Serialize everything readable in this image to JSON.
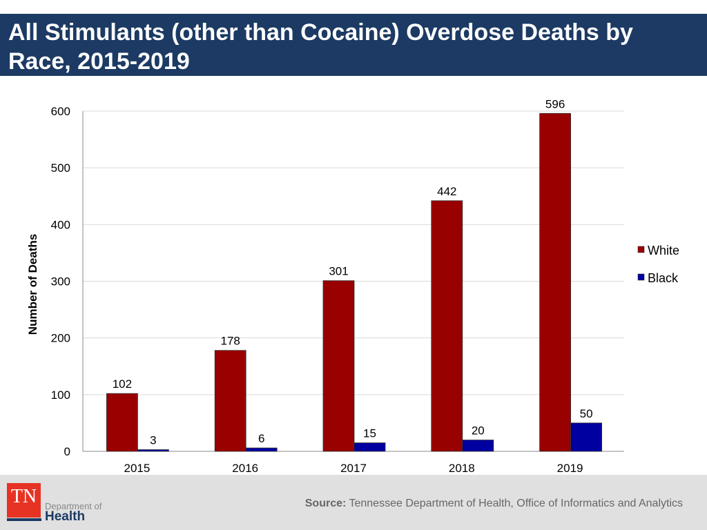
{
  "header": {
    "title": "All Stimulants (other than Cocaine) Overdose Deaths by Race, 2015-2019"
  },
  "footer": {
    "logo_text": "TN",
    "dept": "Department of",
    "health": "Health",
    "source_label": "Source:",
    "source_text": "Tennessee Department of Health, Office of Informatics and Analytics"
  },
  "chart_data": {
    "type": "bar",
    "categories": [
      "2015",
      "2016",
      "2017",
      "2018",
      "2019"
    ],
    "series": [
      {
        "name": "White",
        "values": [
          102,
          178,
          301,
          442,
          596
        ],
        "color": "#990000"
      },
      {
        "name": "Black",
        "values": [
          3,
          6,
          15,
          20,
          50
        ],
        "color": "#0000a0"
      }
    ],
    "ylabel": "Number of Deaths",
    "ylim": [
      0,
      600
    ],
    "yticks": [
      0,
      100,
      200,
      300,
      400,
      500,
      600
    ],
    "grid": true,
    "legend": "right"
  }
}
